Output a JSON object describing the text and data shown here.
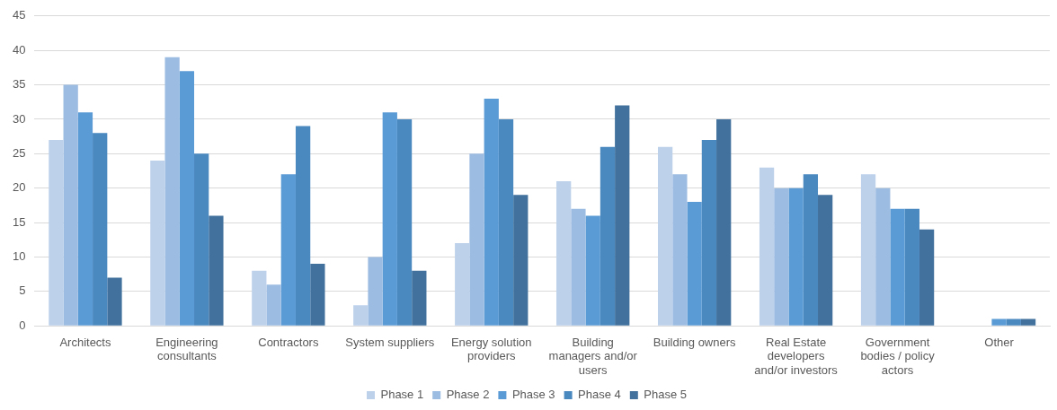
{
  "chart_data": {
    "type": "bar",
    "categories": [
      "Architects",
      "Engineering consultants",
      "Contractors",
      "System suppliers",
      "Energy solution providers",
      "Building managers and/or users",
      "Building owners",
      "Real Estate developers and/or investors",
      "Government bodies / policy actors",
      "Other"
    ],
    "series": [
      {
        "name": "Phase 1",
        "color": "#bdd1eb",
        "values": [
          27,
          24,
          8,
          3,
          12,
          21,
          26,
          23,
          22,
          0
        ]
      },
      {
        "name": "Phase 2",
        "color": "#9dbce2",
        "values": [
          35,
          39,
          6,
          10,
          25,
          17,
          22,
          20,
          20,
          0
        ]
      },
      {
        "name": "Phase 3",
        "color": "#5b9bd5",
        "values": [
          31,
          37,
          22,
          31,
          33,
          16,
          18,
          20,
          17,
          1
        ]
      },
      {
        "name": "Phase 4",
        "color": "#4a88c0",
        "values": [
          28,
          25,
          29,
          30,
          30,
          26,
          27,
          22,
          17,
          1
        ]
      },
      {
        "name": "Phase 5",
        "color": "#41719c",
        "values": [
          7,
          16,
          9,
          8,
          19,
          32,
          30,
          19,
          14,
          1
        ]
      }
    ],
    "ylim": [
      0,
      45
    ],
    "yticks": [
      0,
      5,
      10,
      15,
      20,
      25,
      30,
      35,
      40,
      45
    ],
    "grid": "y",
    "legend": "bottom"
  }
}
